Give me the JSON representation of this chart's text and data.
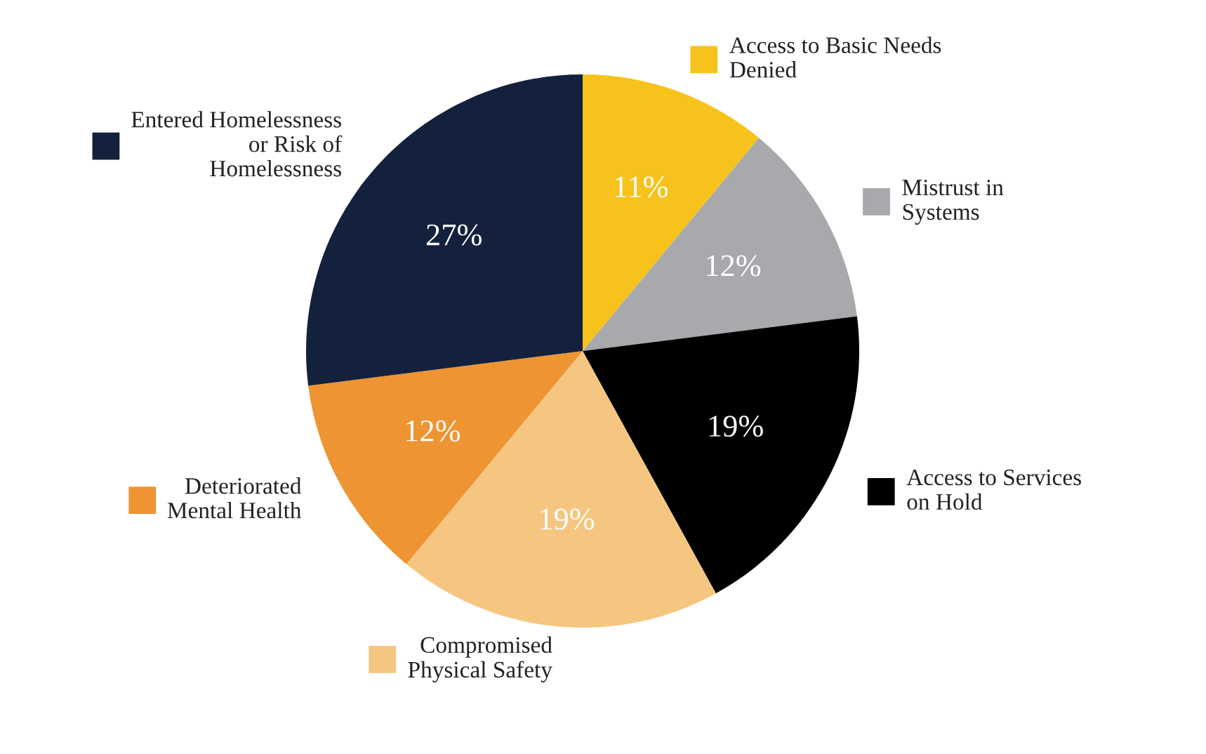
{
  "chart_data": {
    "type": "pie",
    "categories": [
      "Access to Basic Needs\nDenied",
      "Mistrust in\nSystems",
      "Access to Services\non Hold",
      "Compromised\nPhysical Safety",
      "Deteriorated\nMental Health",
      "Entered Homelessness\nor Risk of\nHomelessness"
    ],
    "values": [
      11,
      12,
      19,
      19,
      12,
      27
    ],
    "value_labels": [
      "11%",
      "12%",
      "19%",
      "19%",
      "12%",
      "27%"
    ],
    "legend": "right",
    "colors": [
      "#f7c21c",
      "#a7a9ac",
      "#000000",
      "#f5c67f",
      "#ee9433",
      "#14213d"
    ]
  }
}
